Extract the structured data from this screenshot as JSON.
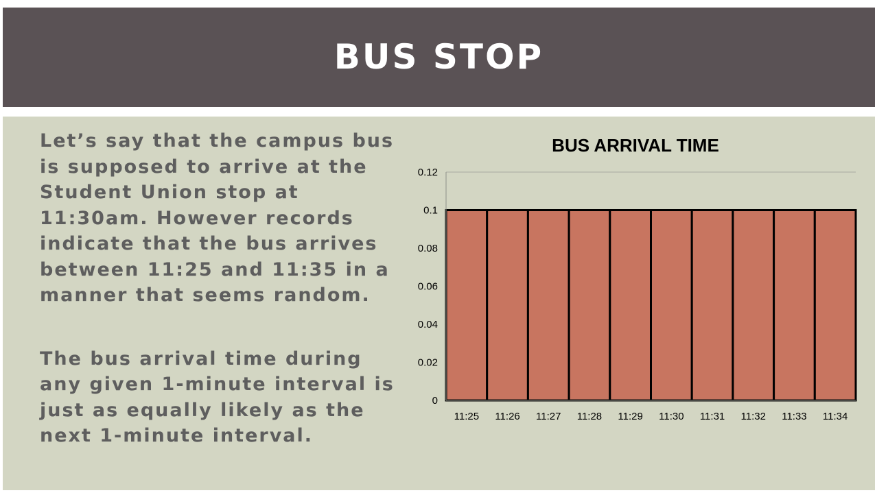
{
  "slide": {
    "title": "BUS STOP",
    "paragraph1": "Let’s say that the campus bus is supposed to arrive at the Student Union stop at 11:30am. However records indicate that the bus arrives between 11:25 and 11:35 in a manner that seems random.",
    "paragraph2": "The bus arrival time during any given 1-minute interval is just as equally likely as the next 1-minute interval."
  },
  "colors": {
    "title_bar": "#5a5255",
    "panel": "#d3d6c3",
    "bar_fill": "#c87560",
    "body_text": "#5e5e5e"
  },
  "chart_data": {
    "type": "bar",
    "title": "BUS ARRIVAL TIME",
    "xlabel": "",
    "ylabel": "",
    "categories": [
      "11:25",
      "11:26",
      "11:27",
      "11:28",
      "11:29",
      "11:30",
      "11:31",
      "11:32",
      "11:33",
      "11:34"
    ],
    "values": [
      0.1,
      0.1,
      0.1,
      0.1,
      0.1,
      0.1,
      0.1,
      0.1,
      0.1,
      0.1
    ],
    "ylim": [
      0,
      0.12
    ],
    "yticks": [
      "0",
      "0.02",
      "0.04",
      "0.06",
      "0.08",
      "0.1",
      "0.12"
    ],
    "grid": true,
    "legend": "none"
  }
}
